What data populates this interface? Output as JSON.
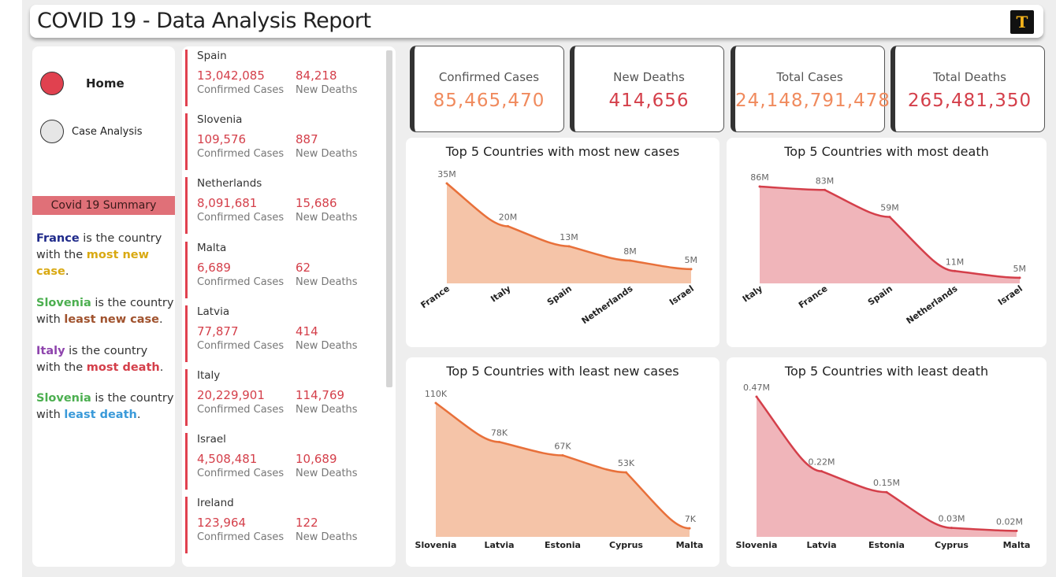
{
  "header": {
    "title": "COVID 19 - Data Analysis Report",
    "logo_letter": "T"
  },
  "nav": {
    "home": "Home",
    "case_analysis": "Case Analysis"
  },
  "summary": {
    "title": "Covid 19 Summary",
    "s1": {
      "country": "France",
      "pre": " is the country with the ",
      "highlight": "most new case",
      "post": "."
    },
    "s2": {
      "country": "Slovenia",
      "pre": " is the country with ",
      "highlight": "least new case",
      "post": "."
    },
    "s3": {
      "country": "Italy",
      "pre": " is the country with the ",
      "highlight": "most death",
      "post": "."
    },
    "s4": {
      "country": "Slovenia",
      "pre": " is the country with ",
      "highlight": "least death",
      "post": "."
    }
  },
  "country_list": {
    "confirmed_caption": "Confirmed Cases",
    "deaths_caption": "New Deaths",
    "items": [
      {
        "country": "Spain",
        "confirmed": "13,042,085",
        "deaths": "84,218"
      },
      {
        "country": "Slovenia",
        "confirmed": "109,576",
        "deaths": "887"
      },
      {
        "country": "Netherlands",
        "confirmed": "8,091,681",
        "deaths": "15,686"
      },
      {
        "country": "Malta",
        "confirmed": "6,689",
        "deaths": "62"
      },
      {
        "country": "Latvia",
        "confirmed": "77,877",
        "deaths": "414"
      },
      {
        "country": "Italy",
        "confirmed": "20,229,901",
        "deaths": "114,769"
      },
      {
        "country": "Israel",
        "confirmed": "4,508,481",
        "deaths": "10,689"
      },
      {
        "country": "Ireland",
        "confirmed": "123,964",
        "deaths": "122"
      }
    ]
  },
  "kpis": [
    {
      "label": "Confirmed Cases",
      "value": "85,465,470",
      "color": "#f08a5d"
    },
    {
      "label": "New Deaths",
      "value": "414,656",
      "color": "#d43f4a"
    },
    {
      "label": "Total Cases",
      "value": "24,148,791,478",
      "color": "#f08a5d"
    },
    {
      "label": "Total Deaths",
      "value": "265,481,350",
      "color": "#d43f4a"
    }
  ],
  "chart_data": [
    {
      "type": "area",
      "title": "Top 5 Countries with most new cases",
      "categories": [
        "France",
        "Italy",
        "Spain",
        "Netherlands",
        "Israel"
      ],
      "values": [
        35,
        20,
        13,
        8,
        5
      ],
      "labels": [
        "35M",
        "20M",
        "13M",
        "8M",
        "5M"
      ],
      "unit": "M",
      "ylim": [
        0,
        35
      ],
      "line_color": "#e8703a",
      "fill_color": "#f5c4a8",
      "rotated_labels": true
    },
    {
      "type": "area",
      "title": "Top 5 Countries with most death",
      "categories": [
        "Italy",
        "France",
        "Spain",
        "Netherlands",
        "Israel"
      ],
      "values": [
        86,
        83,
        59,
        11,
        5
      ],
      "labels": [
        "86M",
        "83M",
        "59M",
        "11M",
        "5M"
      ],
      "unit": "M",
      "ylim": [
        0,
        86
      ],
      "line_color": "#d43f4a",
      "fill_color": "#f0b5ba",
      "rotated_labels": true
    },
    {
      "type": "area",
      "title": "Top 5 Countries with least new cases",
      "categories": [
        "Slovenia",
        "Latvia",
        "Estonia",
        "Cyprus",
        "Malta"
      ],
      "values": [
        110,
        78,
        67,
        53,
        7
      ],
      "labels": [
        "110K",
        "78K",
        "67K",
        "53K",
        "7K"
      ],
      "unit": "K",
      "ylim": [
        0,
        110
      ],
      "line_color": "#e8703a",
      "fill_color": "#f5c4a8",
      "rotated_labels": false
    },
    {
      "type": "area",
      "title": "Top 5 Countries with least death",
      "categories": [
        "Slovenia",
        "Latvia",
        "Estonia",
        "Cyprus",
        "Malta"
      ],
      "values": [
        0.47,
        0.22,
        0.15,
        0.03,
        0.02
      ],
      "labels": [
        "0.47M",
        "0.22M",
        "0.15M",
        "0.03M",
        "0.02M"
      ],
      "unit": "M",
      "ylim": [
        0,
        0.47
      ],
      "line_color": "#d43f4a",
      "fill_color": "#f0b5ba",
      "rotated_labels": false
    }
  ]
}
